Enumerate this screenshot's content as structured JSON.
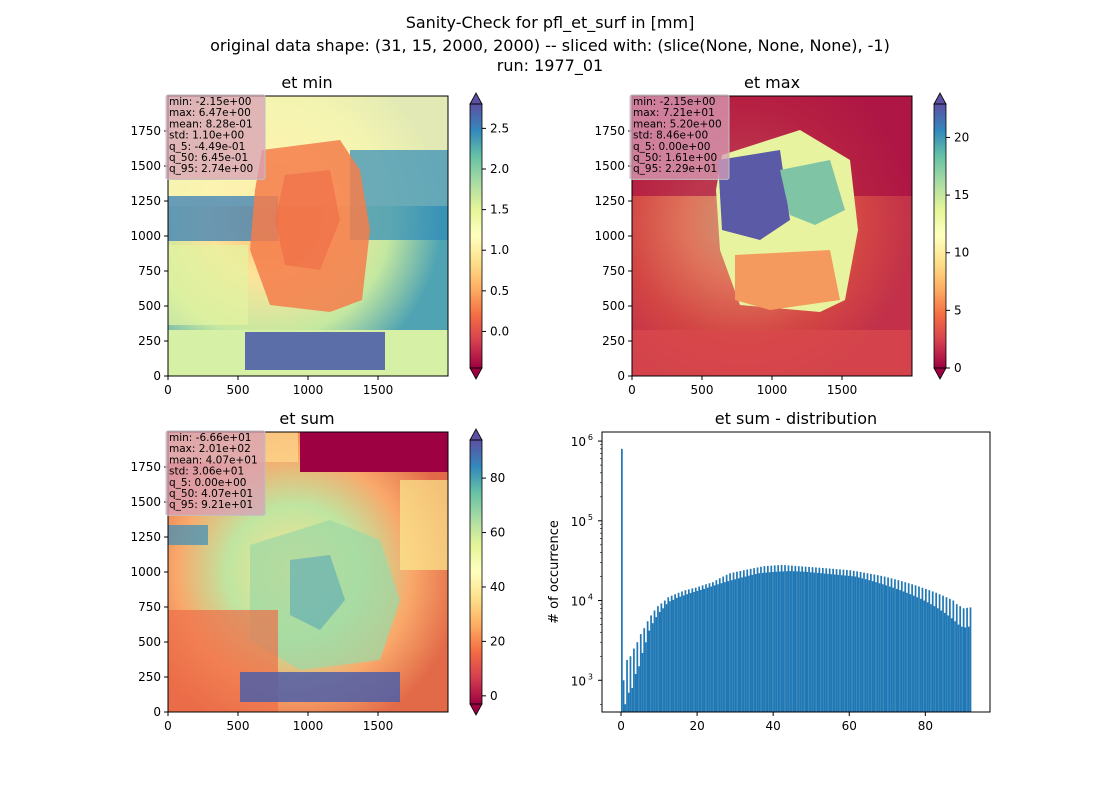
{
  "figure": {
    "title_lines": [
      "Sanity-Check for pfl_et_surf in [mm]",
      "original data shape: (31, 15, 2000, 2000) -- sliced with: (slice(None, None, None), -1)",
      "run: 1977_01"
    ]
  },
  "colors": {
    "colormap": [
      "#9e0142",
      "#d53e4f",
      "#f46d43",
      "#fdae61",
      "#fee08b",
      "#ffffbf",
      "#e6f598",
      "#abdda4",
      "#66c2a5",
      "#3288bd",
      "#5e4fa2"
    ],
    "histogram_bar": "#1f77b4",
    "stats_box": "#d8a0b8"
  },
  "chart_data": [
    {
      "type": "heatmap",
      "title": "et min",
      "xlim": [
        0,
        2000
      ],
      "ylim": [
        0,
        2000
      ],
      "xticks": [
        "0",
        "500",
        "1000",
        "1500"
      ],
      "yticks": [
        "0",
        "250",
        "500",
        "750",
        "1000",
        "1250",
        "1500",
        "1750"
      ],
      "colorbar": {
        "range": [
          -0.45,
          2.8
        ],
        "ticks": [
          "0.0",
          "0.5",
          "1.0",
          "1.5",
          "2.0",
          "2.5"
        ],
        "tick_values": [
          0,
          0.5,
          1.0,
          1.5,
          2.0,
          2.5
        ],
        "extend": "both"
      },
      "stats": [
        "min: -2.15e+00",
        "max: 6.47e+00",
        "mean: 8.28e-01",
        "std: 1.10e+00",
        "q_5: -4.49e-01",
        "q_50: 6.45e-01",
        "q_95: 2.74e+00"
      ]
    },
    {
      "type": "heatmap",
      "title": "et max",
      "xlim": [
        0,
        2000
      ],
      "ylim": [
        0,
        2000
      ],
      "xticks": [
        "0",
        "500",
        "1000",
        "1500"
      ],
      "yticks": [
        "0",
        "250",
        "500",
        "750",
        "1000",
        "1250",
        "1500",
        "1750"
      ],
      "colorbar": {
        "range": [
          0,
          22.9
        ],
        "ticks": [
          "0",
          "5",
          "10",
          "15",
          "20"
        ],
        "tick_values": [
          0,
          5,
          10,
          15,
          20
        ],
        "extend": "both"
      },
      "stats": [
        "min: -2.15e+00",
        "max: 7.21e+01",
        "mean: 5.20e+00",
        "std: 8.46e+00",
        "q_5: 0.00e+00",
        "q_50: 1.61e+00",
        "q_95: 2.29e+01"
      ]
    },
    {
      "type": "heatmap",
      "title": "et sum",
      "xlim": [
        0,
        2000
      ],
      "ylim": [
        0,
        2000
      ],
      "xticks": [
        "0",
        "500",
        "1000",
        "1500"
      ],
      "yticks": [
        "0",
        "250",
        "500",
        "750",
        "1000",
        "1250",
        "1500",
        "1750"
      ],
      "colorbar": {
        "range": [
          -3,
          94
        ],
        "ticks": [
          "0",
          "20",
          "40",
          "60",
          "80"
        ],
        "tick_values": [
          0,
          20,
          40,
          60,
          80
        ],
        "extend": "both"
      },
      "stats": [
        "min: -6.66e+01",
        "max: 2.01e+02",
        "mean: 4.07e+01",
        "std: 3.06e+01",
        "q_5: 0.00e+00",
        "q_50: 4.07e+01",
        "q_95: 9.21e+01"
      ]
    },
    {
      "type": "bar",
      "title": "et sum - distribution",
      "ylabel": "# of occurrence",
      "xlim": [
        -5,
        97
      ],
      "xticks": [
        "0",
        "20",
        "40",
        "60",
        "80"
      ],
      "xtick_values": [
        0,
        20,
        40,
        60,
        80
      ],
      "yscale": "log",
      "ylim": [
        400,
        1300000
      ],
      "ytick_values": [
        1000,
        10000,
        100000,
        1000000
      ],
      "yticks": [
        {
          "base": "10",
          "exp": "3"
        },
        {
          "base": "10",
          "exp": "4"
        },
        {
          "base": "10",
          "exp": "5"
        },
        {
          "base": "10",
          "exp": "6"
        }
      ],
      "bin_range": [
        0,
        92.1
      ],
      "values": [
        800000,
        1000,
        500,
        1800,
        700,
        2000,
        800,
        2500,
        1200,
        3000,
        1500,
        3800,
        2200,
        4500,
        3000,
        5500,
        4200,
        6500,
        5200,
        7500,
        6200,
        8500,
        7200,
        9200,
        8000,
        10000,
        9000,
        11000,
        9800,
        11500,
        10200,
        12000,
        10800,
        12500,
        11200,
        13000,
        11600,
        13500,
        12000,
        13800,
        12400,
        14200,
        12800,
        14500,
        13200,
        15000,
        13600,
        15500,
        14000,
        16000,
        14500,
        16500,
        15000,
        17000,
        15500,
        18000,
        16000,
        19000,
        16500,
        20000,
        17000,
        21000,
        17500,
        22000,
        18000,
        22500,
        18500,
        23000,
        19000,
        23500,
        19500,
        24000,
        20000,
        24500,
        20500,
        25000,
        21000,
        25500,
        21500,
        26000,
        22000,
        26500,
        22200,
        27000,
        22400,
        27200,
        22600,
        27400,
        22800,
        27600,
        23000,
        27800,
        23100,
        28000,
        23200,
        27800,
        23300,
        27600,
        23400,
        27400,
        23300,
        27200,
        23200,
        27000,
        23100,
        26800,
        23000,
        26600,
        22800,
        26400,
        22600,
        26200,
        22400,
        26000,
        22200,
        25800,
        22000,
        25600,
        21800,
        25400,
        21600,
        25200,
        21400,
        25000,
        21200,
        24800,
        21000,
        24600,
        20800,
        24400,
        20600,
        24200,
        20400,
        24000,
        20200,
        23600,
        20000,
        23200,
        19500,
        22800,
        19000,
        22400,
        18500,
        22000,
        18000,
        21600,
        17500,
        21200,
        17000,
        20800,
        16500,
        20400,
        16000,
        20000,
        15500,
        19500,
        15000,
        19000,
        14500,
        18500,
        14000,
        18000,
        13500,
        17500,
        13000,
        17000,
        12500,
        16500,
        12000,
        16000,
        11500,
        15500,
        11000,
        15000,
        10500,
        14500,
        10000,
        14000,
        9500,
        13500,
        9000,
        13000,
        8500,
        12500,
        8000,
        12000,
        7500,
        11500,
        7000,
        11000,
        6500,
        10500,
        6000,
        10000,
        5500,
        9000,
        5000,
        8500,
        4700,
        8000,
        4600,
        8100,
        4700,
        8200
      ]
    }
  ]
}
